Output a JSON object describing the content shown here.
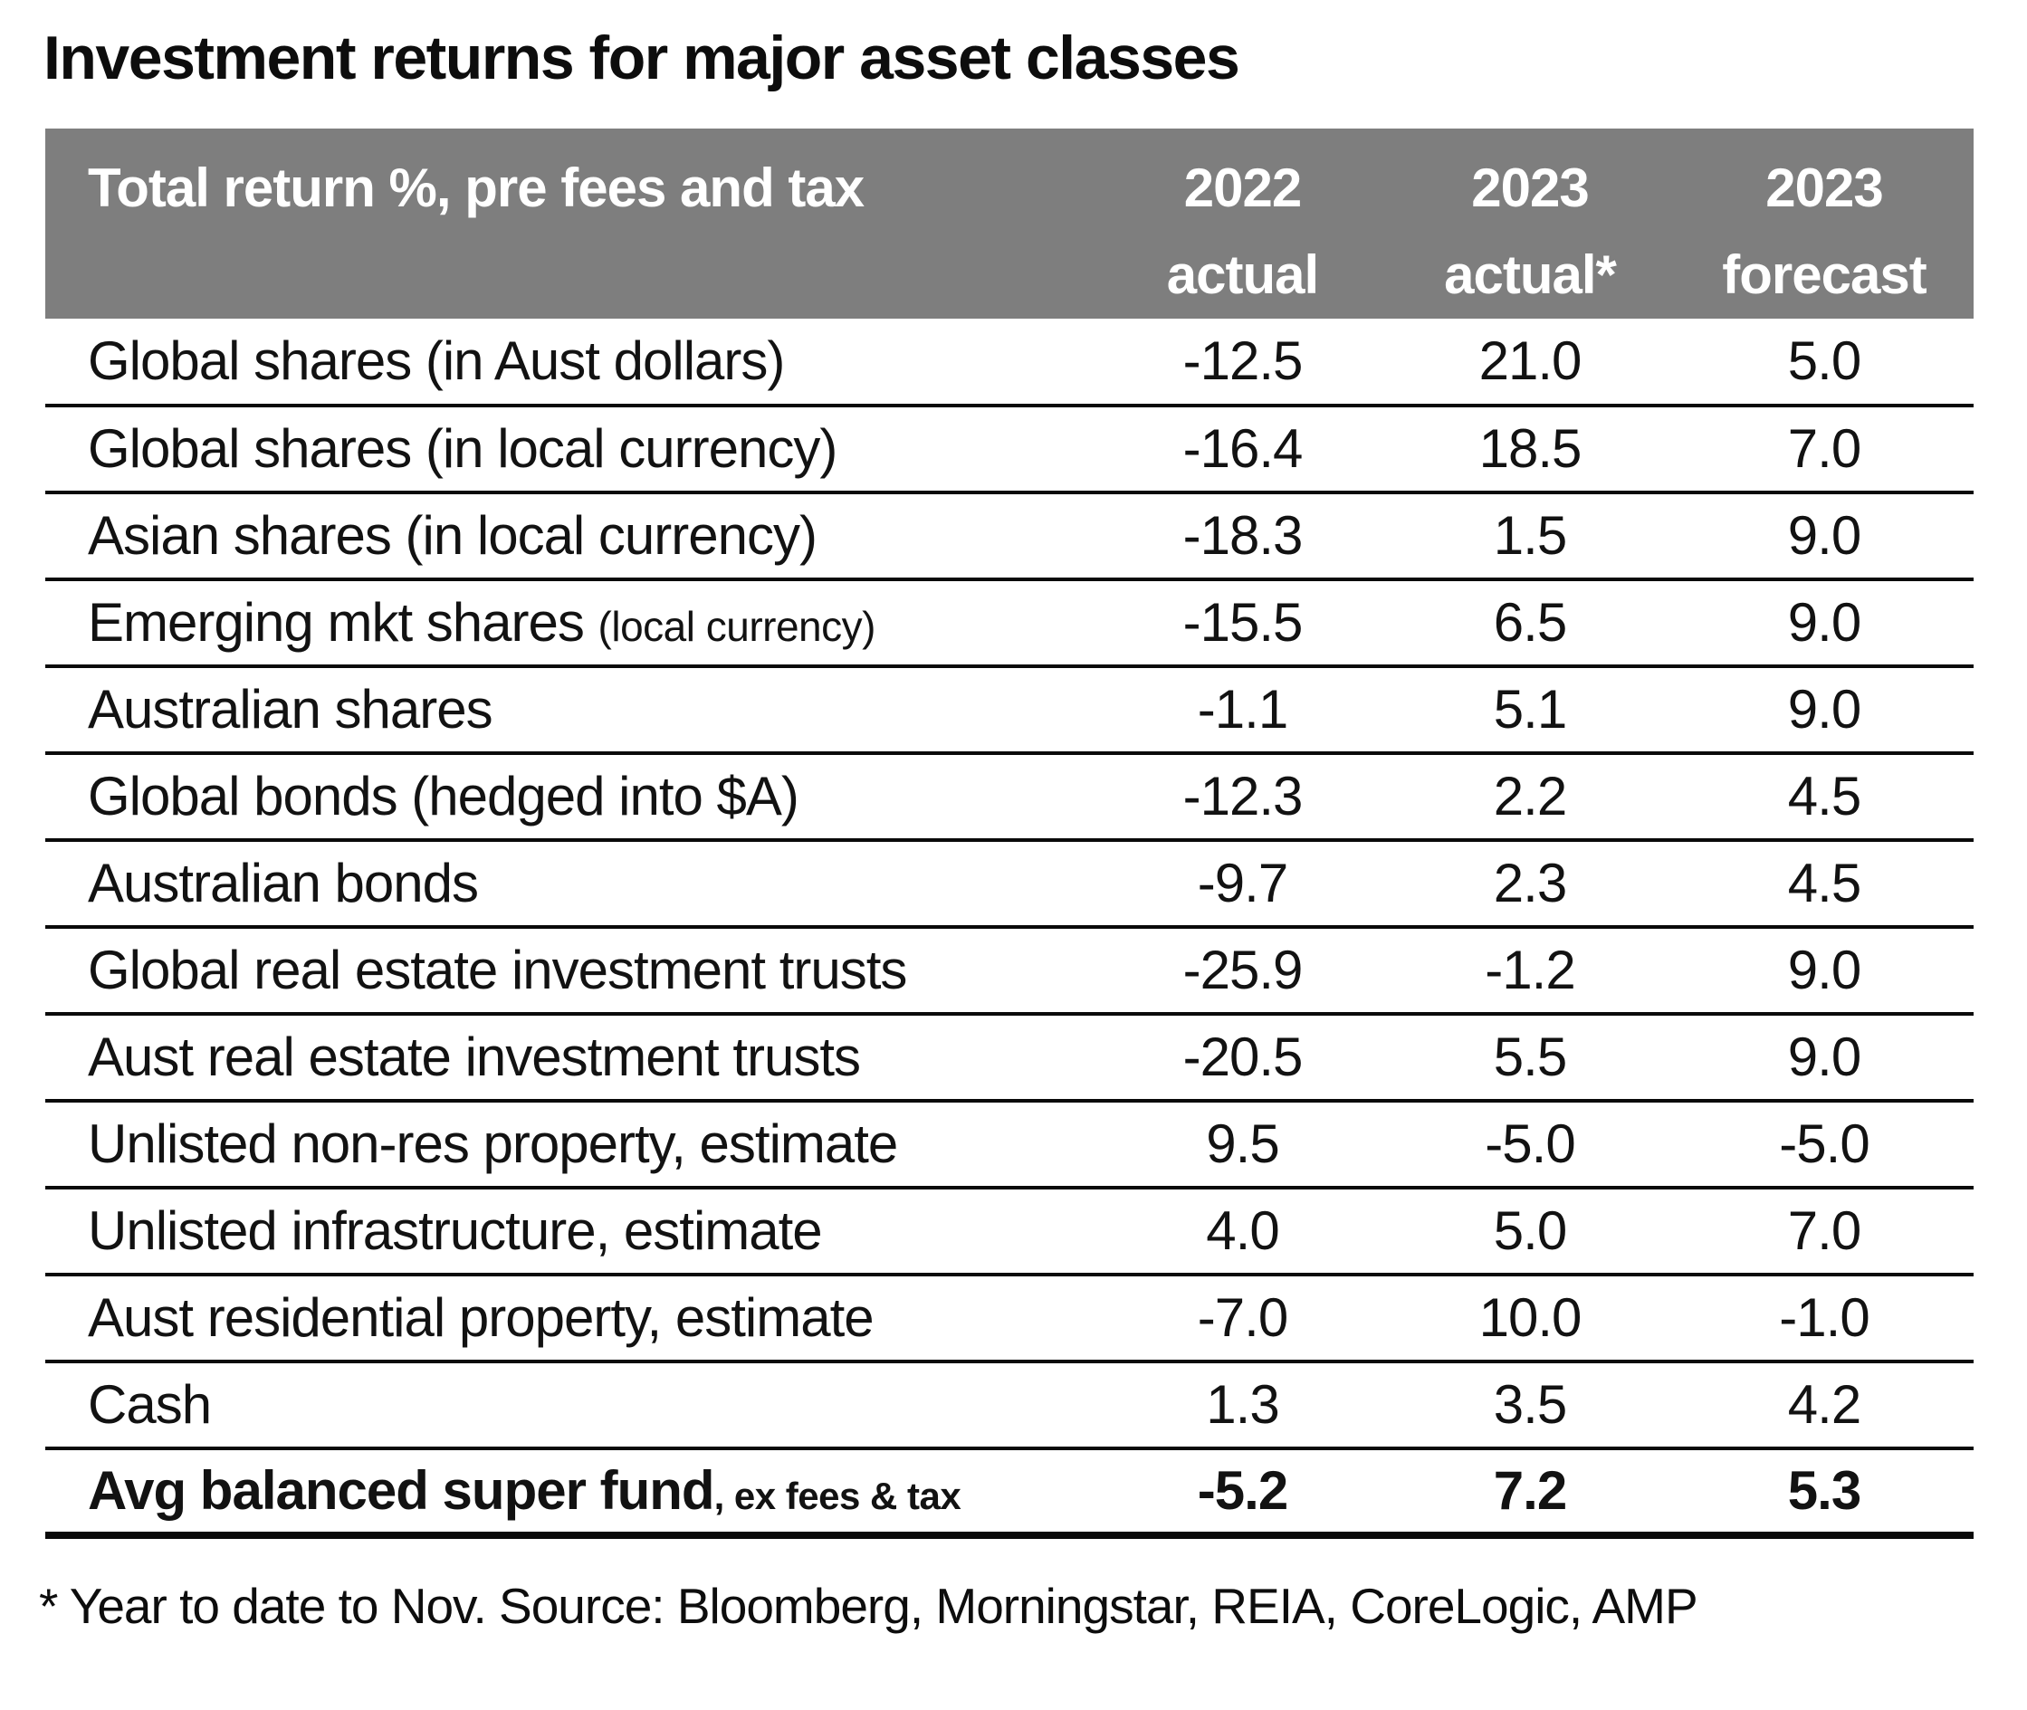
{
  "title": "Investment returns for major asset classes",
  "table": {
    "header": {
      "label": "Total return %, pre fees and tax",
      "columns": [
        {
          "line1": "2022",
          "line2": "actual"
        },
        {
          "line1": "2023",
          "line2": "actual*"
        },
        {
          "line1": "2023",
          "line2": "forecast"
        }
      ]
    },
    "rows": [
      {
        "label": "Global shares (in Aust dollars)",
        "label_small": "",
        "values": [
          "-12.5",
          "21.0",
          "5.0"
        ],
        "bold": false
      },
      {
        "label": "Global shares (in local currency)",
        "label_small": "",
        "values": [
          "-16.4",
          "18.5",
          "7.0"
        ],
        "bold": false
      },
      {
        "label": "Asian shares (in local currency)",
        "label_small": "",
        "values": [
          "-18.3",
          "1.5",
          "9.0"
        ],
        "bold": false
      },
      {
        "label": "Emerging mkt shares ",
        "label_small": "(local currency)",
        "values": [
          "-15.5",
          "6.5",
          "9.0"
        ],
        "bold": false
      },
      {
        "label": "Australian shares",
        "label_small": "",
        "values": [
          "-1.1",
          "5.1",
          "9.0"
        ],
        "bold": false
      },
      {
        "label": "Global bonds (hedged into $A)",
        "label_small": "",
        "values": [
          "-12.3",
          "2.2",
          "4.5"
        ],
        "bold": false
      },
      {
        "label": "Australian bonds",
        "label_small": "",
        "values": [
          "-9.7",
          "2.3",
          "4.5"
        ],
        "bold": false
      },
      {
        "label": "Global real estate investment trusts",
        "label_small": "",
        "values": [
          "-25.9",
          "-1.2",
          "9.0"
        ],
        "bold": false
      },
      {
        "label": "Aust real estate investment trusts",
        "label_small": "",
        "values": [
          "-20.5",
          "5.5",
          "9.0"
        ],
        "bold": false
      },
      {
        "label": "Unlisted non-res property, estimate",
        "label_small": "",
        "values": [
          "9.5",
          "-5.0",
          "-5.0"
        ],
        "bold": false
      },
      {
        "label": "Unlisted infrastructure, estimate",
        "label_small": "",
        "values": [
          "4.0",
          "5.0",
          "7.0"
        ],
        "bold": false
      },
      {
        "label": "Aust residential property, estimate",
        "label_small": "",
        "values": [
          "-7.0",
          "10.0",
          "-1.0"
        ],
        "bold": false
      },
      {
        "label": "Cash",
        "label_small": "",
        "values": [
          "1.3",
          "3.5",
          "4.2"
        ],
        "bold": false
      },
      {
        "label": "Avg balanced super fund",
        "label_small": ", ex fees & tax",
        "values": [
          "-5.2",
          "7.2",
          "5.3"
        ],
        "bold": true
      }
    ]
  },
  "footnote": "* Year to date to Nov. Source: Bloomberg, Morningstar, REIA, CoreLogic, AMP",
  "colors": {
    "header_bg": "#7e7e7e",
    "header_text": "#ffffff",
    "body_text": "#121212",
    "line": "#0a0a0a"
  },
  "chart_data": {
    "type": "table",
    "title": "Investment returns for major asset classes",
    "subtitle": "Total return %, pre fees and tax",
    "categories": [
      "Global shares (in Aust dollars)",
      "Global shares (in local currency)",
      "Asian shares (in local currency)",
      "Emerging mkt shares (local currency)",
      "Australian shares",
      "Global bonds (hedged into $A)",
      "Australian bonds",
      "Global real estate investment trusts",
      "Aust real estate investment trusts",
      "Unlisted non-res property, estimate",
      "Unlisted infrastructure, estimate",
      "Aust residential property, estimate",
      "Cash",
      "Avg balanced super fund, ex fees & tax"
    ],
    "series": [
      {
        "name": "2022 actual",
        "values": [
          -12.5,
          -16.4,
          -18.3,
          -15.5,
          -1.1,
          -12.3,
          -9.7,
          -25.9,
          -20.5,
          9.5,
          4.0,
          -7.0,
          1.3,
          -5.2
        ]
      },
      {
        "name": "2023 actual*",
        "values": [
          21.0,
          18.5,
          1.5,
          6.5,
          5.1,
          2.2,
          2.3,
          -1.2,
          5.5,
          -5.0,
          5.0,
          10.0,
          3.5,
          7.2
        ]
      },
      {
        "name": "2023 forecast",
        "values": [
          5.0,
          7.0,
          9.0,
          9.0,
          9.0,
          4.5,
          4.5,
          9.0,
          9.0,
          -5.0,
          7.0,
          -1.0,
          4.2,
          5.3
        ]
      }
    ],
    "footnote": "* Year to date to Nov. Source: Bloomberg, Morningstar, REIA, CoreLogic, AMP"
  }
}
